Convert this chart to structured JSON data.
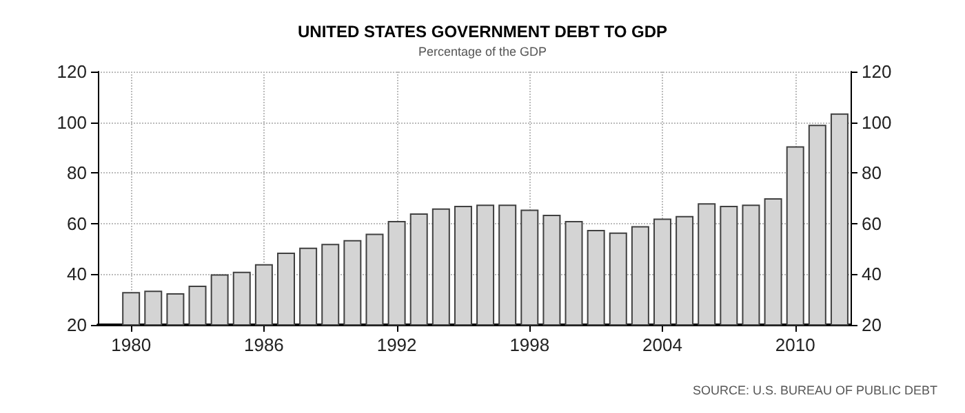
{
  "chart_data": {
    "type": "bar",
    "title": "UNITED STATES GOVERNMENT DEBT TO GDP",
    "subtitle": "Percentage of the GDP",
    "x": [
      1980,
      1981,
      1982,
      1983,
      1984,
      1985,
      1986,
      1987,
      1988,
      1989,
      1990,
      1991,
      1992,
      1993,
      1994,
      1995,
      1996,
      1997,
      1998,
      1999,
      2000,
      2001,
      2002,
      2003,
      2004,
      2005,
      2006,
      2007,
      2008,
      2009,
      2010,
      2011,
      2012
    ],
    "values": [
      33,
      33.5,
      32.5,
      35.5,
      40,
      41,
      44,
      48.5,
      50.5,
      52,
      53.5,
      56,
      61,
      64,
      66,
      67,
      67.5,
      67.5,
      65.5,
      63.5,
      61,
      57.5,
      56.5,
      59,
      62,
      63,
      68,
      67,
      67.5,
      70,
      90.5,
      99,
      103.5
    ],
    "color": "#d4d4d4",
    "xlim": [
      1978.5,
      2012.5
    ],
    "xticks": [
      1980,
      1986,
      1992,
      1998,
      2004,
      2010
    ],
    "ylim": [
      20,
      120
    ],
    "yticks": [
      20,
      40,
      60,
      80,
      100,
      120
    ],
    "y2lim": [
      20,
      120
    ],
    "y2ticks": [
      20,
      40,
      60,
      80,
      100,
      120
    ],
    "grid": true,
    "annotations": [
      "SOURCE: U.S. BUREAU OF PUBLIC DEBT"
    ]
  }
}
